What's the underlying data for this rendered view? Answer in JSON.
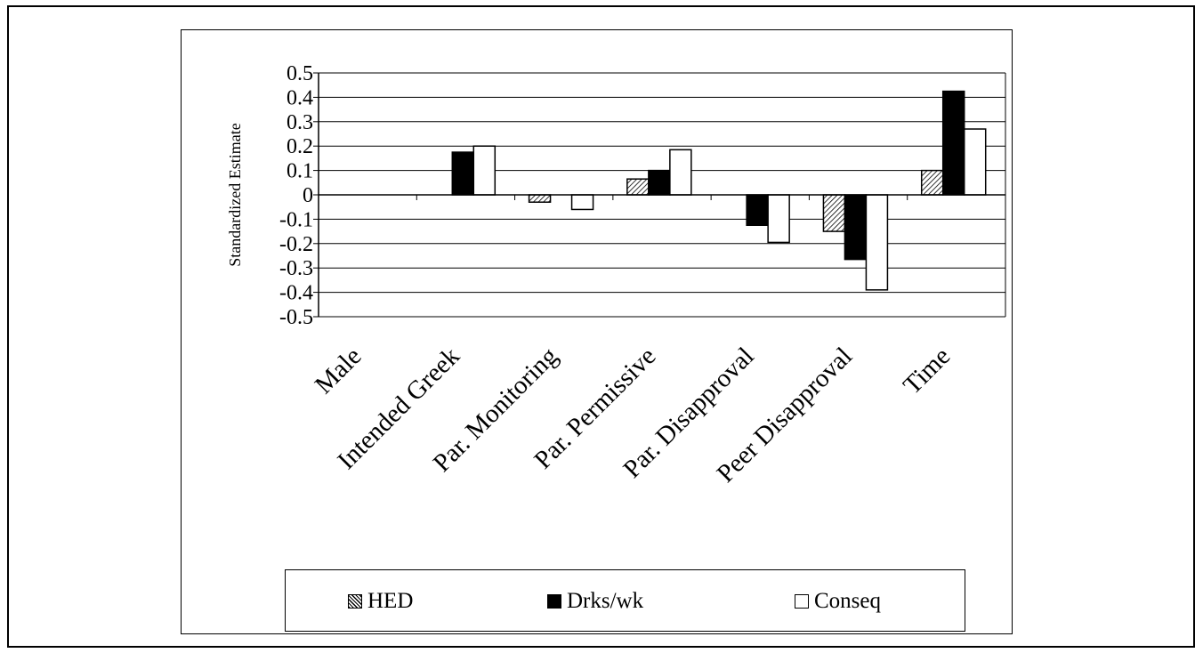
{
  "chart_data": {
    "type": "bar",
    "title": "",
    "xlabel": "",
    "ylabel": "Standardized Estimate",
    "categories": [
      "Male",
      "Intended Greek",
      "Par. Monitoring",
      "Par. Permissive",
      "Par. Disapproval",
      "Peer Disapproval",
      "Time"
    ],
    "series": [
      {
        "name": "HED",
        "pattern": "diagonal-hatch",
        "values": [
          0,
          0,
          -0.03,
          0.065,
          0,
          -0.15,
          0.1
        ]
      },
      {
        "name": "Drks/wk",
        "color": "#000000",
        "values": [
          0,
          0.175,
          0,
          0.1,
          -0.125,
          -0.265,
          0.425
        ]
      },
      {
        "name": "Conseq",
        "color": "#ffffff",
        "values": [
          0,
          0.2,
          -0.06,
          0.185,
          -0.195,
          -0.39,
          0.27
        ]
      }
    ],
    "ylim": [
      -0.5,
      0.5
    ],
    "yticks": [
      0.5,
      0.4,
      0.3,
      0.2,
      0.1,
      0,
      -0.1,
      -0.2,
      -0.3,
      -0.4,
      -0.5
    ],
    "ytick_labels": [
      "0.5",
      "0.4",
      "0.3",
      "0.2",
      "0.1",
      "0",
      "-0.1",
      "-0.2",
      "-0.3",
      "-0.4",
      "-0.5"
    ],
    "grid": true,
    "legend_position": "bottom"
  }
}
